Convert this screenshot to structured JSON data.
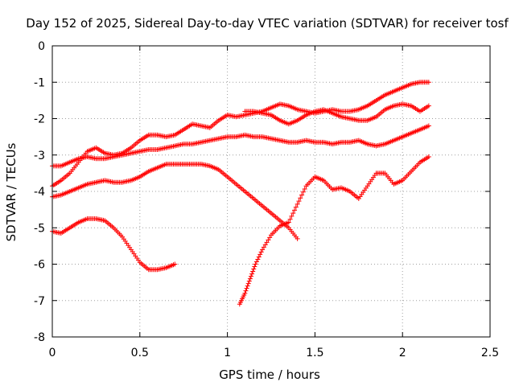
{
  "chart_data": {
    "type": "scatter",
    "title": "Day 152 of 2025, Sidereal Day-to-day VTEC variation (SDTVAR) for receiver tosf",
    "xlabel": "GPS time / hours",
    "ylabel": "SDTVAR / TECUs",
    "xlim": [
      0,
      2.5
    ],
    "ylim": [
      -8,
      0
    ],
    "xticks": [
      "0",
      "0.5",
      "1",
      "1.5",
      "2",
      "2.5"
    ],
    "yticks": [
      "0",
      "-1",
      "-2",
      "-3",
      "-4",
      "-5",
      "-6",
      "-7",
      "-8"
    ],
    "grid": true,
    "marker": "+",
    "color": "#ff0000",
    "series": [
      {
        "x": [
          0,
          0.05,
          0.1,
          0.15,
          0.2,
          0.25,
          0.3,
          0.35,
          0.4,
          0.45,
          0.5,
          0.55,
          0.6,
          0.65,
          0.7,
          0.75,
          0.8,
          0.85,
          0.9,
          0.95,
          1.0,
          1.05,
          1.1,
          1.15,
          1.2,
          1.25,
          1.3,
          1.35,
          1.4,
          1.45,
          1.5,
          1.55,
          1.6,
          1.65,
          1.7,
          1.75,
          1.8,
          1.85,
          1.9,
          1.95,
          2.0,
          2.05,
          2.1,
          2.15
        ],
        "y": [
          -3.85,
          -3.7,
          -3.5,
          -3.2,
          -2.9,
          -2.8,
          -2.95,
          -3.0,
          -2.95,
          -2.8,
          -2.6,
          -2.45,
          -2.45,
          -2.5,
          -2.45,
          -2.3,
          -2.15,
          -2.2,
          -2.25,
          -2.05,
          -1.9,
          -1.95,
          -1.9,
          -1.85,
          -1.8,
          -1.7,
          -1.6,
          -1.65,
          -1.75,
          -1.8,
          -1.85,
          -1.8,
          -1.75,
          -1.8,
          -1.8,
          -1.75,
          -1.65,
          -1.5,
          -1.35,
          -1.25,
          -1.15,
          -1.05,
          -1.0,
          -1.0
        ]
      },
      {
        "x": [
          0,
          0.05,
          0.1,
          0.15,
          0.2,
          0.25,
          0.3,
          0.35,
          0.4,
          0.45,
          0.5,
          0.55,
          0.6,
          0.65,
          0.7,
          0.75,
          0.8,
          0.85,
          0.9,
          0.95,
          1.0,
          1.05,
          1.1,
          1.15,
          1.2,
          1.25,
          1.3,
          1.35,
          1.4,
          1.45,
          1.5,
          1.55,
          1.6,
          1.65,
          1.7,
          1.75,
          1.8,
          1.85,
          1.9,
          1.95,
          2.0,
          2.05,
          2.1,
          2.15
        ],
        "y": [
          -3.3,
          -3.3,
          -3.2,
          -3.1,
          -3.05,
          -3.1,
          -3.1,
          -3.05,
          -3.0,
          -2.95,
          -2.9,
          -2.85,
          -2.85,
          -2.8,
          -2.75,
          -2.7,
          -2.7,
          -2.65,
          -2.6,
          -2.55,
          -2.5,
          -2.5,
          -2.45,
          -2.5,
          -2.5,
          -2.55,
          -2.6,
          -2.65,
          -2.65,
          -2.6,
          -2.65,
          -2.65,
          -2.7,
          -2.65,
          -2.65,
          -2.6,
          -2.7,
          -2.75,
          -2.7,
          -2.6,
          -2.5,
          -2.4,
          -2.3,
          -2.2
        ]
      },
      {
        "x": [
          0,
          0.05,
          0.1,
          0.15,
          0.2,
          0.25,
          0.3,
          0.35,
          0.4,
          0.45,
          0.5,
          0.55,
          0.6,
          0.65,
          0.7,
          0.75,
          0.8,
          0.85,
          0.9,
          0.95,
          1.0,
          1.05,
          1.1,
          1.15,
          1.2,
          1.25,
          1.3,
          1.35,
          1.4
        ],
        "y": [
          -4.15,
          -4.1,
          -4.0,
          -3.9,
          -3.8,
          -3.75,
          -3.7,
          -3.75,
          -3.75,
          -3.7,
          -3.6,
          -3.45,
          -3.35,
          -3.25,
          -3.25,
          -3.25,
          -3.25,
          -3.25,
          -3.3,
          -3.4,
          -3.6,
          -3.8,
          -4.0,
          -4.2,
          -4.4,
          -4.6,
          -4.8,
          -5.0,
          -5.3
        ]
      },
      {
        "x": [
          0,
          0.05,
          0.1,
          0.15,
          0.2,
          0.25,
          0.3,
          0.35,
          0.4,
          0.45,
          0.5,
          0.55,
          0.6,
          0.65,
          0.7
        ],
        "y": [
          -5.1,
          -5.15,
          -5.0,
          -4.85,
          -4.75,
          -4.75,
          -4.8,
          -5.0,
          -5.25,
          -5.6,
          -5.95,
          -6.15,
          -6.15,
          -6.1,
          -6.0
        ]
      },
      {
        "x": [
          1.07,
          1.1,
          1.13,
          1.16,
          1.2,
          1.25,
          1.3,
          1.35,
          1.4,
          1.45,
          1.5,
          1.55,
          1.6,
          1.65,
          1.7,
          1.75,
          1.8,
          1.85,
          1.9,
          1.95,
          2.0,
          2.05,
          2.1,
          2.15
        ],
        "y": [
          -7.1,
          -6.8,
          -6.4,
          -6.0,
          -5.6,
          -5.2,
          -4.95,
          -4.85,
          -4.35,
          -3.85,
          -3.6,
          -3.7,
          -3.95,
          -3.9,
          -4.0,
          -4.2,
          -3.85,
          -3.5,
          -3.5,
          -3.8,
          -3.7,
          -3.45,
          -3.2,
          -3.05
        ]
      },
      {
        "x": [
          1.1,
          1.15,
          1.2,
          1.25,
          1.3,
          1.35,
          1.4,
          1.45,
          1.5,
          1.55,
          1.6,
          1.65,
          1.7,
          1.75,
          1.8,
          1.85,
          1.9,
          1.95,
          2.0,
          2.05,
          2.1,
          2.15
        ],
        "y": [
          -1.8,
          -1.8,
          -1.85,
          -1.9,
          -2.05,
          -2.15,
          -2.05,
          -1.9,
          -1.8,
          -1.75,
          -1.85,
          -1.95,
          -2.0,
          -2.05,
          -2.05,
          -1.95,
          -1.75,
          -1.65,
          -1.6,
          -1.65,
          -1.8,
          -1.65
        ]
      }
    ]
  }
}
